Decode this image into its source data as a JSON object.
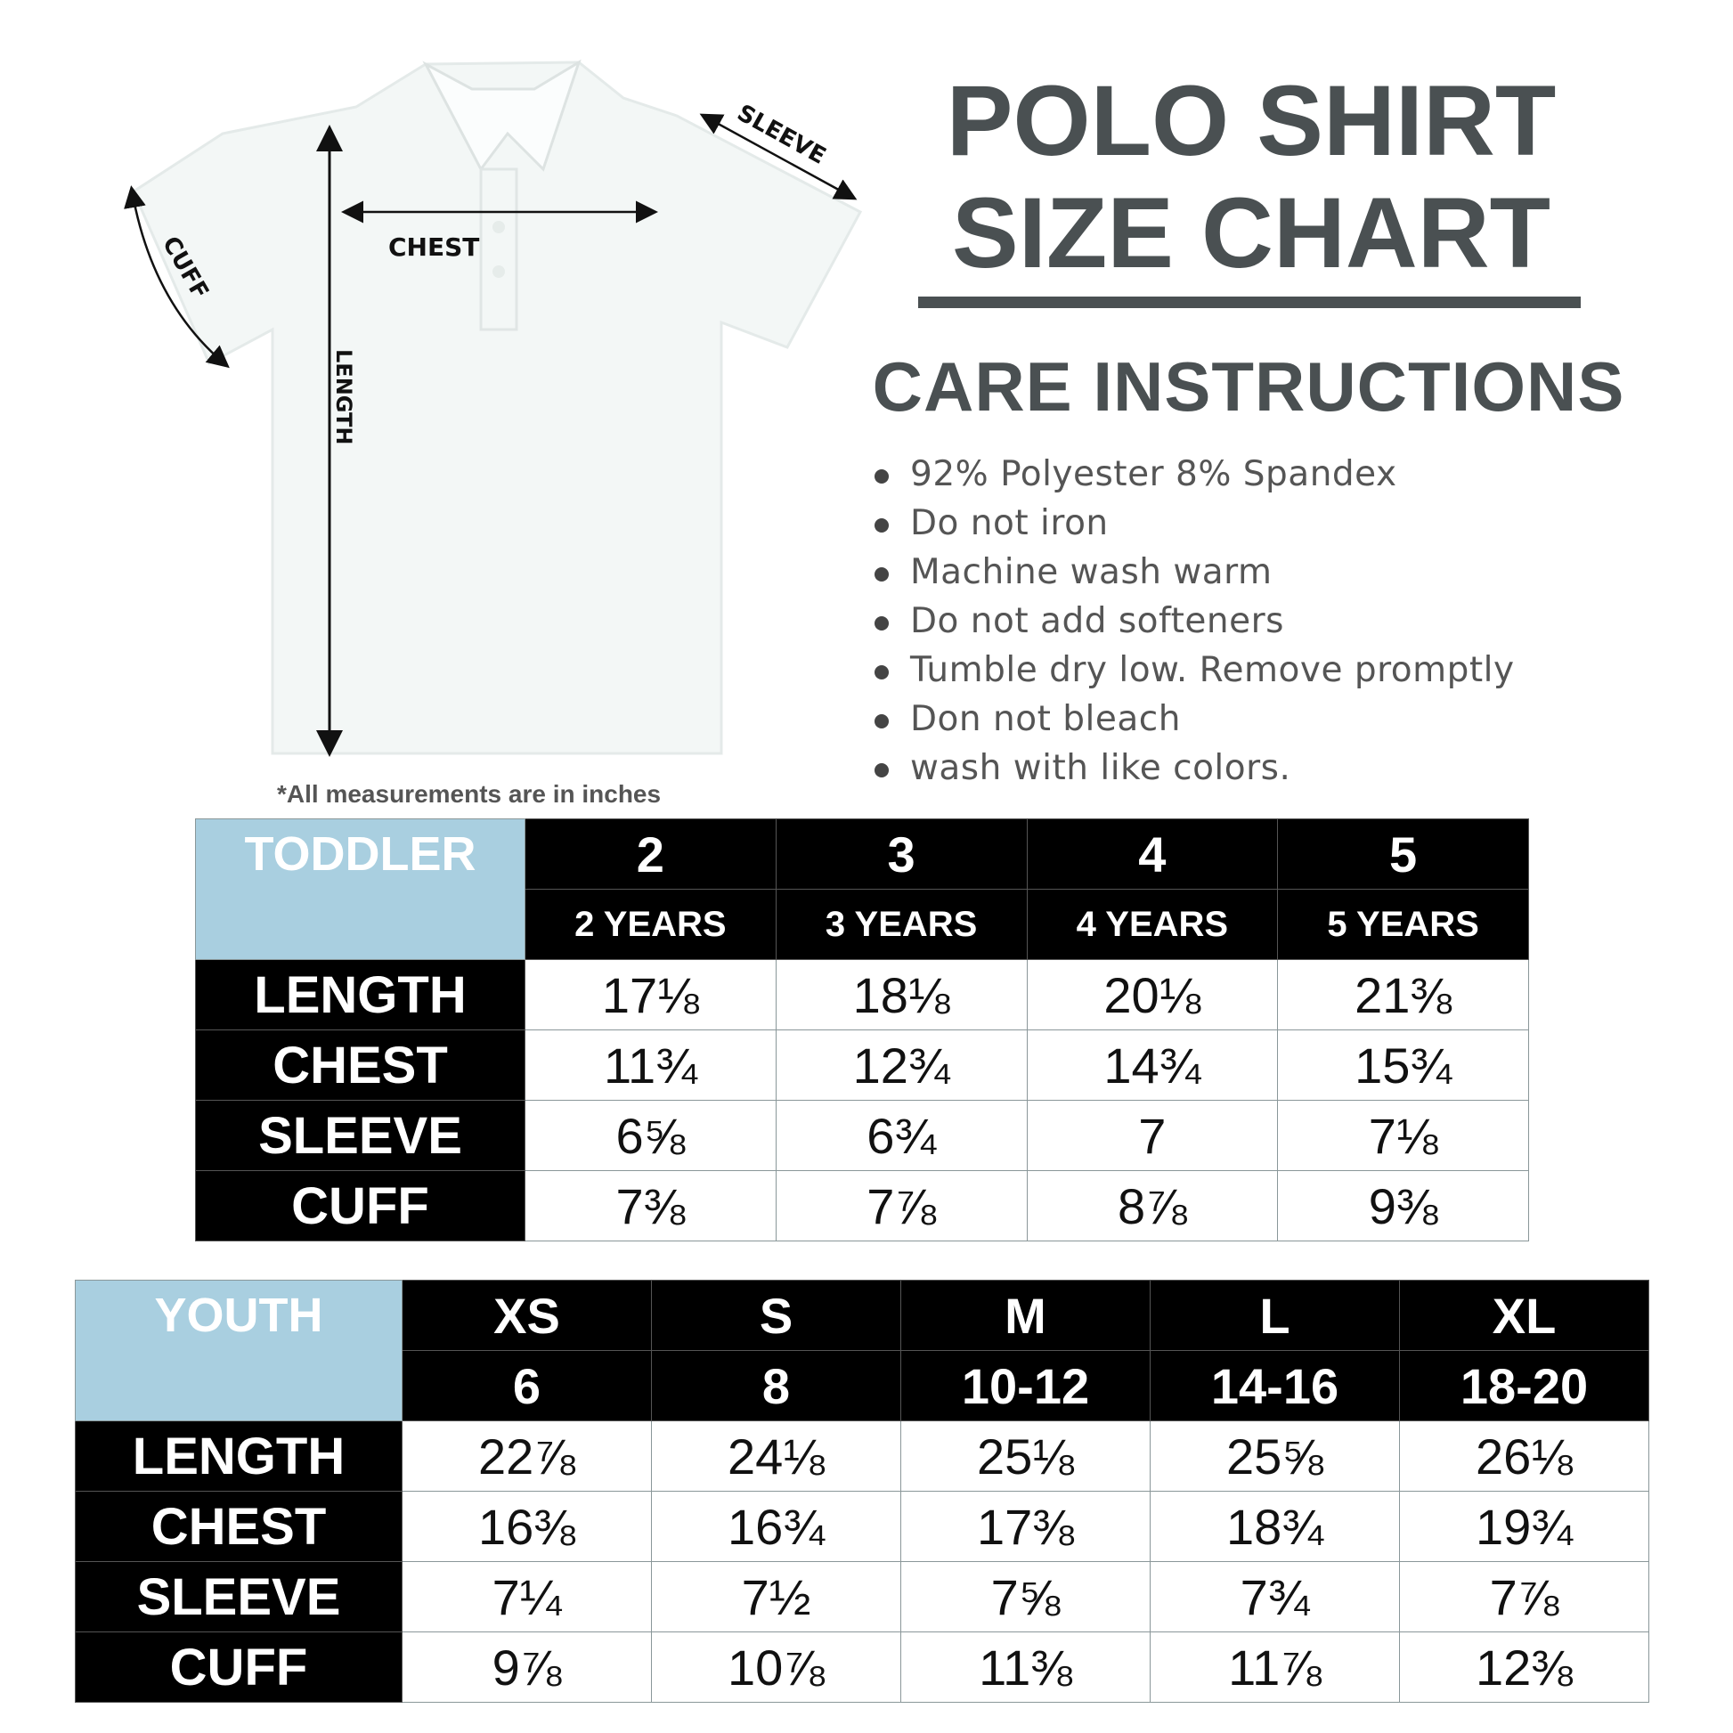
{
  "title": {
    "line1": "POLO SHIRT",
    "line2": "SIZE CHART"
  },
  "care": {
    "heading": "CARE INSTRUCTIONS",
    "items": [
      "92% Polyester 8% Spandex",
      "Do not iron",
      "Machine wash warm",
      "Do not add softeners",
      "Tumble dry low. Remove promptly",
      "Don not bleach",
      "wash with like colors."
    ]
  },
  "diagram": {
    "chest": "CHEST",
    "length": "LENGTH",
    "sleeve": "SLEEVE",
    "cuff": "CUFF"
  },
  "note": "*All measurements are in inches",
  "colors": {
    "header_blue": "#a9cfe0",
    "title_gray": "#4a5052",
    "black": "#000000"
  },
  "toddler": {
    "label": "TODDLER",
    "sizes": [
      "2",
      "3",
      "4",
      "5"
    ],
    "ages": [
      "2 YEARS",
      "3 YEARS",
      "4 YEARS",
      "5 YEARS"
    ],
    "rows": [
      {
        "label": "LENGTH",
        "values": [
          "17⅛",
          "18⅛",
          "20⅛",
          "21⅜"
        ]
      },
      {
        "label": "CHEST",
        "values": [
          "11¾",
          "12¾",
          "14¾",
          "15¾"
        ]
      },
      {
        "label": "SLEEVE",
        "values": [
          "6⅝",
          "6¾",
          "7",
          "7⅛"
        ]
      },
      {
        "label": "CUFF",
        "values": [
          "7⅜",
          "7⅞",
          "8⅞",
          "9⅜"
        ]
      }
    ]
  },
  "youth": {
    "label": "YOUTH",
    "sizes": [
      "XS",
      "S",
      "M",
      "L",
      "XL"
    ],
    "numbers": [
      "6",
      "8",
      "10-12",
      "14-16",
      "18-20"
    ],
    "rows": [
      {
        "label": "LENGTH",
        "values": [
          "22⅞",
          "24⅛",
          "25⅛",
          "25⅝",
          "26⅛"
        ]
      },
      {
        "label": "CHEST",
        "values": [
          "16⅜",
          "16¾",
          "17⅜",
          "18¾",
          "19¾"
        ]
      },
      {
        "label": "SLEEVE",
        "values": [
          "7¼",
          "7½",
          "7⅝",
          "7¾",
          "7⅞"
        ]
      },
      {
        "label": "CUFF",
        "values": [
          "9⅞",
          "10⅞",
          "11⅜",
          "11⅞",
          "12⅜"
        ]
      }
    ]
  }
}
